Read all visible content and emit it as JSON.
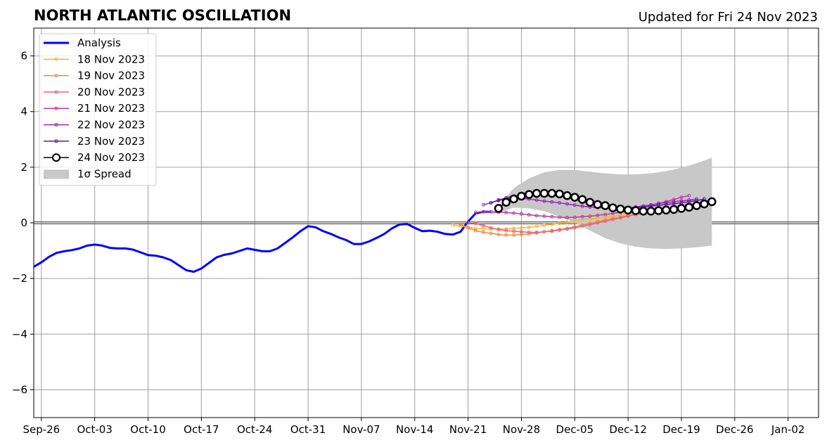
{
  "chart_data": {
    "type": "line",
    "title": "NORTH ATLANTIC OSCILLATION",
    "subtitle": "Updated for Fri 24 Nov 2023",
    "xlabel": "",
    "ylabel": "",
    "xlim": [
      "2023-09-25",
      "2024-01-06"
    ],
    "ylim": [
      -7,
      7
    ],
    "x_tick_labels": [
      "Sep-26",
      "Oct-03",
      "Oct-10",
      "Oct-17",
      "Oct-24",
      "Oct-31",
      "Nov-07",
      "Nov-14",
      "Nov-21",
      "Nov-28",
      "Dec-05",
      "Dec-12",
      "Dec-19",
      "Dec-26",
      "Jan-02"
    ],
    "x_tick_dates": [
      "2023-09-26",
      "2023-10-03",
      "2023-10-10",
      "2023-10-17",
      "2023-10-24",
      "2023-10-31",
      "2023-11-07",
      "2023-11-14",
      "2023-11-21",
      "2023-11-28",
      "2023-12-05",
      "2023-12-12",
      "2023-12-19",
      "2023-12-26",
      "2024-01-02"
    ],
    "y_ticks": [
      -6,
      -4,
      -2,
      0,
      2,
      4,
      6
    ],
    "y_tick_labels": [
      "−6",
      "−4",
      "−2",
      "0",
      "2",
      "4",
      "6"
    ],
    "grid": true,
    "legend_position": "top-left",
    "series": [
      {
        "name": "Analysis",
        "color": "#0000ff",
        "style": "thick-line",
        "x": [
          "2023-09-25",
          "2023-09-26",
          "2023-09-27",
          "2023-09-28",
          "2023-09-29",
          "2023-09-30",
          "2023-10-01",
          "2023-10-02",
          "2023-10-03",
          "2023-10-04",
          "2023-10-05",
          "2023-10-06",
          "2023-10-07",
          "2023-10-08",
          "2023-10-09",
          "2023-10-10",
          "2023-10-11",
          "2023-10-12",
          "2023-10-13",
          "2023-10-14",
          "2023-10-15",
          "2023-10-16",
          "2023-10-17",
          "2023-10-18",
          "2023-10-19",
          "2023-10-20",
          "2023-10-21",
          "2023-10-22",
          "2023-10-23",
          "2023-10-24",
          "2023-10-25",
          "2023-10-26",
          "2023-10-27",
          "2023-10-28",
          "2023-10-29",
          "2023-10-30",
          "2023-10-31",
          "2023-11-01",
          "2023-11-02",
          "2023-11-03",
          "2023-11-04",
          "2023-11-05",
          "2023-11-06",
          "2023-11-07",
          "2023-11-08",
          "2023-11-09",
          "2023-11-10",
          "2023-11-11",
          "2023-11-12",
          "2023-11-13",
          "2023-11-14",
          "2023-11-15",
          "2023-11-16",
          "2023-11-17",
          "2023-11-18",
          "2023-11-19",
          "2023-11-20",
          "2023-11-21",
          "2023-11-22",
          "2023-11-23",
          "2023-11-24"
        ],
        "values": [
          -1.58,
          -1.42,
          -1.22,
          -1.08,
          -1.02,
          -0.98,
          -0.92,
          -0.82,
          -0.78,
          -0.82,
          -0.9,
          -0.92,
          -0.92,
          -0.96,
          -1.06,
          -1.16,
          -1.18,
          -1.24,
          -1.34,
          -1.52,
          -1.7,
          -1.76,
          -1.64,
          -1.44,
          -1.24,
          -1.15,
          -1.1,
          -1.01,
          -0.92,
          -0.97,
          -1.02,
          -1.02,
          -0.92,
          -0.72,
          -0.52,
          -0.3,
          -0.12,
          -0.16,
          -0.3,
          -0.4,
          -0.52,
          -0.62,
          -0.76,
          -0.76,
          -0.67,
          -0.54,
          -0.4,
          -0.2,
          -0.06,
          -0.04,
          -0.18,
          -0.3,
          -0.28,
          -0.32,
          -0.4,
          -0.42,
          -0.32,
          0.05,
          0.34,
          0.4,
          0.4
        ]
      },
      {
        "name": "18 Nov 2023",
        "color": "#f5b731",
        "style": "thin-dot",
        "x": [
          "2023-11-19",
          "2023-11-20",
          "2023-11-21",
          "2023-11-22",
          "2023-11-23",
          "2023-11-24",
          "2023-11-25",
          "2023-11-26",
          "2023-11-27",
          "2023-11-28",
          "2023-11-29",
          "2023-11-30",
          "2023-12-01",
          "2023-12-02",
          "2023-12-03",
          "2023-12-04",
          "2023-12-05",
          "2023-12-06",
          "2023-12-07",
          "2023-12-08",
          "2023-12-09",
          "2023-12-10",
          "2023-12-11",
          "2023-12-12"
        ],
        "values": [
          -0.08,
          -0.12,
          -0.16,
          -0.2,
          -0.22,
          -0.22,
          -0.22,
          -0.22,
          -0.2,
          -0.18,
          -0.16,
          -0.13,
          -0.09,
          -0.06,
          -0.02,
          0.02,
          0.06,
          0.1,
          0.14,
          0.18,
          0.21,
          0.24,
          0.27,
          0.3
        ]
      },
      {
        "name": "19 Nov 2023",
        "color": "#f38a3f",
        "style": "thin-dot",
        "x": [
          "2023-11-20",
          "2023-11-21",
          "2023-11-22",
          "2023-11-23",
          "2023-11-24",
          "2023-11-25",
          "2023-11-26",
          "2023-11-27",
          "2023-11-28",
          "2023-11-29",
          "2023-11-30",
          "2023-12-01",
          "2023-12-02",
          "2023-12-03",
          "2023-12-04",
          "2023-12-05",
          "2023-12-06",
          "2023-12-07",
          "2023-12-08",
          "2023-12-09",
          "2023-12-10",
          "2023-12-11",
          "2023-12-12",
          "2023-12-13"
        ],
        "values": [
          -0.05,
          -0.18,
          -0.28,
          -0.34,
          -0.38,
          -0.42,
          -0.44,
          -0.44,
          -0.42,
          -0.4,
          -0.36,
          -0.32,
          -0.28,
          -0.24,
          -0.2,
          -0.14,
          -0.08,
          -0.02,
          0.04,
          0.1,
          0.16,
          0.21,
          0.26,
          0.3
        ]
      },
      {
        "name": "20 Nov 2023",
        "color": "#e4637a",
        "style": "thin-dot",
        "x": [
          "2023-11-21",
          "2023-11-22",
          "2023-11-23",
          "2023-11-24",
          "2023-11-25",
          "2023-11-26",
          "2023-11-27",
          "2023-11-28",
          "2023-11-29",
          "2023-11-30",
          "2023-12-01",
          "2023-12-02",
          "2023-12-03",
          "2023-12-04",
          "2023-12-05",
          "2023-12-06",
          "2023-12-07",
          "2023-12-08",
          "2023-12-09",
          "2023-12-10",
          "2023-12-11",
          "2023-12-12",
          "2023-12-13",
          "2023-12-14"
        ],
        "values": [
          0.0,
          -0.02,
          -0.1,
          -0.18,
          -0.24,
          -0.28,
          -0.3,
          -0.32,
          -0.34,
          -0.34,
          -0.32,
          -0.3,
          -0.26,
          -0.22,
          -0.18,
          -0.12,
          -0.06,
          0.0,
          0.06,
          0.12,
          0.18,
          0.24,
          0.3,
          0.34
        ]
      },
      {
        "name": "21 Nov 2023",
        "color": "#c13b9c",
        "style": "thin-dot",
        "x": [
          "2023-11-22",
          "2023-11-23",
          "2023-11-24",
          "2023-11-25",
          "2023-11-26",
          "2023-11-27",
          "2023-11-28",
          "2023-11-29",
          "2023-11-30",
          "2023-12-01",
          "2023-12-02",
          "2023-12-03",
          "2023-12-04",
          "2023-12-05",
          "2023-12-06",
          "2023-12-07",
          "2023-12-08",
          "2023-12-09",
          "2023-12-10",
          "2023-12-11",
          "2023-12-12",
          "2023-12-13",
          "2023-12-14",
          "2023-12-15",
          "2023-12-16",
          "2023-12-17",
          "2023-12-18",
          "2023-12-19",
          "2023-12-20"
        ],
        "values": [
          0.38,
          0.4,
          0.4,
          0.38,
          0.37,
          0.35,
          0.32,
          0.29,
          0.26,
          0.24,
          0.22,
          0.2,
          0.19,
          0.2,
          0.22,
          0.24,
          0.27,
          0.3,
          0.34,
          0.38,
          0.43,
          0.49,
          0.55,
          0.62,
          0.7,
          0.76,
          0.84,
          0.92,
          0.98
        ]
      },
      {
        "name": "22 Nov 2023",
        "color": "#9a27b4",
        "style": "thin-dot",
        "x": [
          "2023-11-23",
          "2023-11-24",
          "2023-11-25",
          "2023-11-26",
          "2023-11-27",
          "2023-11-28",
          "2023-11-29",
          "2023-11-30",
          "2023-12-01",
          "2023-12-02",
          "2023-12-03",
          "2023-12-04",
          "2023-12-05",
          "2023-12-06",
          "2023-12-07",
          "2023-12-08",
          "2023-12-09",
          "2023-12-10",
          "2023-12-11",
          "2023-12-12",
          "2023-12-13",
          "2023-12-14",
          "2023-12-15",
          "2023-12-16",
          "2023-12-17",
          "2023-12-18",
          "2023-12-19",
          "2023-12-20",
          "2023-12-21"
        ],
        "values": [
          0.65,
          0.72,
          0.8,
          0.86,
          0.9,
          0.88,
          0.86,
          0.82,
          0.78,
          0.75,
          0.72,
          0.68,
          0.64,
          0.6,
          0.57,
          0.55,
          0.54,
          0.53,
          0.53,
          0.54,
          0.57,
          0.61,
          0.65,
          0.69,
          0.73,
          0.76,
          0.79,
          0.82,
          0.86
        ]
      },
      {
        "name": "23 Nov 2023",
        "color": "#5e1a9e",
        "style": "thin-dot",
        "x": [
          "2023-11-24",
          "2023-11-25",
          "2023-11-26",
          "2023-11-27",
          "2023-11-28",
          "2023-11-29",
          "2023-11-30",
          "2023-12-01",
          "2023-12-02",
          "2023-12-03",
          "2023-12-04",
          "2023-12-05",
          "2023-12-06",
          "2023-12-07",
          "2023-12-08",
          "2023-12-09",
          "2023-12-10",
          "2023-12-11",
          "2023-12-12",
          "2023-12-13",
          "2023-12-14",
          "2023-12-15",
          "2023-12-16",
          "2023-12-17",
          "2023-12-18",
          "2023-12-19",
          "2023-12-20",
          "2023-12-21",
          "2023-12-22"
        ],
        "values": [
          0.72,
          0.82,
          0.9,
          0.96,
          1.0,
          1.02,
          1.04,
          1.04,
          1.02,
          0.98,
          0.94,
          0.88,
          0.8,
          0.72,
          0.65,
          0.6,
          0.56,
          0.54,
          0.54,
          0.55,
          0.57,
          0.6,
          0.63,
          0.66,
          0.69,
          0.72,
          0.76,
          0.8,
          0.86
        ]
      },
      {
        "name": "24 Nov 2023",
        "color": "#000000",
        "style": "open-circle",
        "x": [
          "2023-11-25",
          "2023-11-26",
          "2023-11-27",
          "2023-11-28",
          "2023-11-29",
          "2023-11-30",
          "2023-12-01",
          "2023-12-02",
          "2023-12-03",
          "2023-12-04",
          "2023-12-05",
          "2023-12-06",
          "2023-12-07",
          "2023-12-08",
          "2023-12-09",
          "2023-12-10",
          "2023-12-11",
          "2023-12-12",
          "2023-12-13",
          "2023-12-14",
          "2023-12-15",
          "2023-12-16",
          "2023-12-17",
          "2023-12-18",
          "2023-12-19",
          "2023-12-20",
          "2023-12-21",
          "2023-12-22",
          "2023-12-23"
        ],
        "values": [
          0.52,
          0.74,
          0.86,
          0.96,
          1.02,
          1.06,
          1.06,
          1.06,
          1.04,
          0.98,
          0.92,
          0.84,
          0.74,
          0.66,
          0.62,
          0.54,
          0.5,
          0.46,
          0.44,
          0.42,
          0.42,
          0.44,
          0.46,
          0.48,
          0.52,
          0.56,
          0.62,
          0.68,
          0.76
        ]
      }
    ],
    "spread": {
      "name": "1σ Spread",
      "color": "#c8c8c8",
      "x": [
        "2023-11-24",
        "2023-11-25",
        "2023-11-27",
        "2023-11-29",
        "2023-12-01",
        "2023-12-03",
        "2023-12-05",
        "2023-12-07",
        "2023-12-09",
        "2023-12-11",
        "2023-12-13",
        "2023-12-15",
        "2023-12-17",
        "2023-12-19",
        "2023-12-21",
        "2023-12-23"
      ],
      "upper": [
        0.3,
        0.6,
        1.25,
        1.6,
        1.82,
        1.9,
        1.9,
        1.84,
        1.78,
        1.74,
        1.74,
        1.78,
        1.86,
        1.98,
        2.14,
        2.34
      ],
      "lower": [
        0.3,
        0.35,
        0.55,
        0.52,
        0.42,
        0.22,
        0.0,
        -0.28,
        -0.55,
        -0.74,
        -0.86,
        -0.92,
        -0.94,
        -0.92,
        -0.88,
        -0.82
      ]
    }
  }
}
